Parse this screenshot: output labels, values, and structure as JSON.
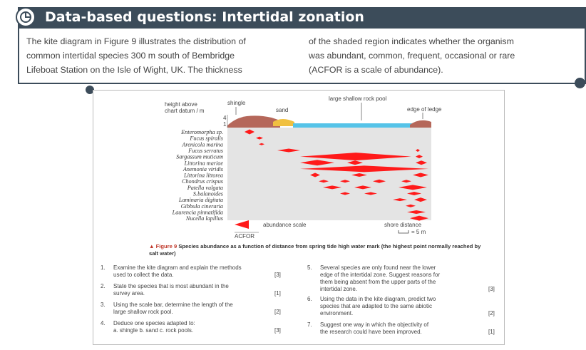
{
  "header": {
    "title": "Data-based questions: Intertidal zonation",
    "icon": "chart-pie-icon"
  },
  "intro": {
    "left_lines": [
      "The kite diagram in Figure 9 illustrates the distribution of",
      "common intertidal species 300 m south of Bembridge",
      "Lifeboat Station on the Isle of Wight, UK. The thickness"
    ],
    "right_lines": [
      "of the shaded region indicates whether the organism",
      "was abundant, common, frequent, occasional or rare",
      "(ACFOR is a scale of abundance)."
    ]
  },
  "figure": {
    "labels": {
      "height": "height above",
      "datum": "chart datum / m",
      "shingle": "shingle",
      "sand": "sand",
      "rock_pool": "large shallow rock pool",
      "edge": "edge of ledge",
      "tick_4": "4",
      "tick_1": "1",
      "abundance_scale": "abundance scale",
      "acfor": "ACFOR",
      "shore_distance": "shore distance",
      "scale_5m": "= 5 m"
    },
    "species": [
      "Enteromorpha sp.",
      "Fucus spiralis",
      "Arenicola marina",
      "Fucus serratus",
      "Sargassum muticum",
      "Littorina mariae",
      "Anemonia viridis",
      "Littorina littorea",
      "Chondrus crispus",
      "Patella vulgata",
      "S.balanoides",
      "Laminaria digitata",
      "Gibbula cineraria",
      "Laurencia pinnatifida",
      "Nucella lapillus"
    ],
    "caption_label": "Figure 9",
    "caption_text": "Species abundance as a function of distance from spring tide high water mark (the highest point normally reached by salt water)",
    "colors": {
      "kite": "#ff1a1a",
      "shingle": "#b5675a",
      "sand": "#f0c040",
      "water": "#55c3e8",
      "plot_bg": "#e4e4e4"
    }
  },
  "questions": [
    {
      "n": "1.",
      "lines": [
        "Examine the kite diagram and explain the methods",
        "used to collect the data."
      ],
      "marks": "[3]"
    },
    {
      "n": "2.",
      "lines": [
        "State the species that is most abundant in the",
        "survey area."
      ],
      "marks": "[1]"
    },
    {
      "n": "3.",
      "lines": [
        "Using the scale bar, determine the length of the",
        "large shallow rock pool."
      ],
      "marks": "[2]"
    },
    {
      "n": "4.",
      "lines": [
        "Deduce one species adapted to:",
        "a.   shingle   b.   sand   c.    rock pools."
      ],
      "marks": "[3]"
    },
    {
      "n": "5.",
      "lines": [
        "Several species are only found near the lower",
        "edge of the intertidal zone. Suggest reasons for",
        "them being absent from the upper parts of the",
        "intertidal zone."
      ],
      "marks": "[3]"
    },
    {
      "n": "6.",
      "lines": [
        "Using the data in the kite diagram, predict two",
        "species that are adapted to the same abiotic",
        "environment."
      ],
      "marks": "[2]"
    },
    {
      "n": "7.",
      "lines": [
        "Suggest one way in which the objectivity of",
        "the research could have been improved."
      ],
      "marks": "[1]"
    }
  ]
}
